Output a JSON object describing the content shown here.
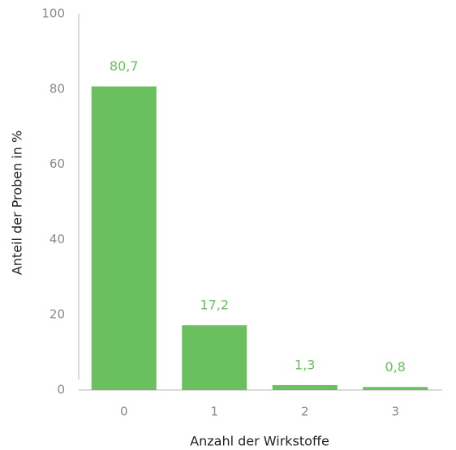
{
  "chart_data": {
    "type": "bar",
    "x_label": "Anzahl der Wirkstoffe",
    "y_label": "Anteil der Proben in %",
    "categories": [
      "0",
      "1",
      "2",
      "3"
    ],
    "values": [
      80.7,
      17.2,
      1.3,
      0.8
    ],
    "value_labels": [
      "80,7",
      "17,2",
      "1,3",
      "0,8"
    ],
    "color": "#6abf5e",
    "ylim": [
      0,
      100
    ],
    "yticks": [
      0,
      20,
      40,
      60,
      80,
      100
    ],
    "grid": false
  }
}
